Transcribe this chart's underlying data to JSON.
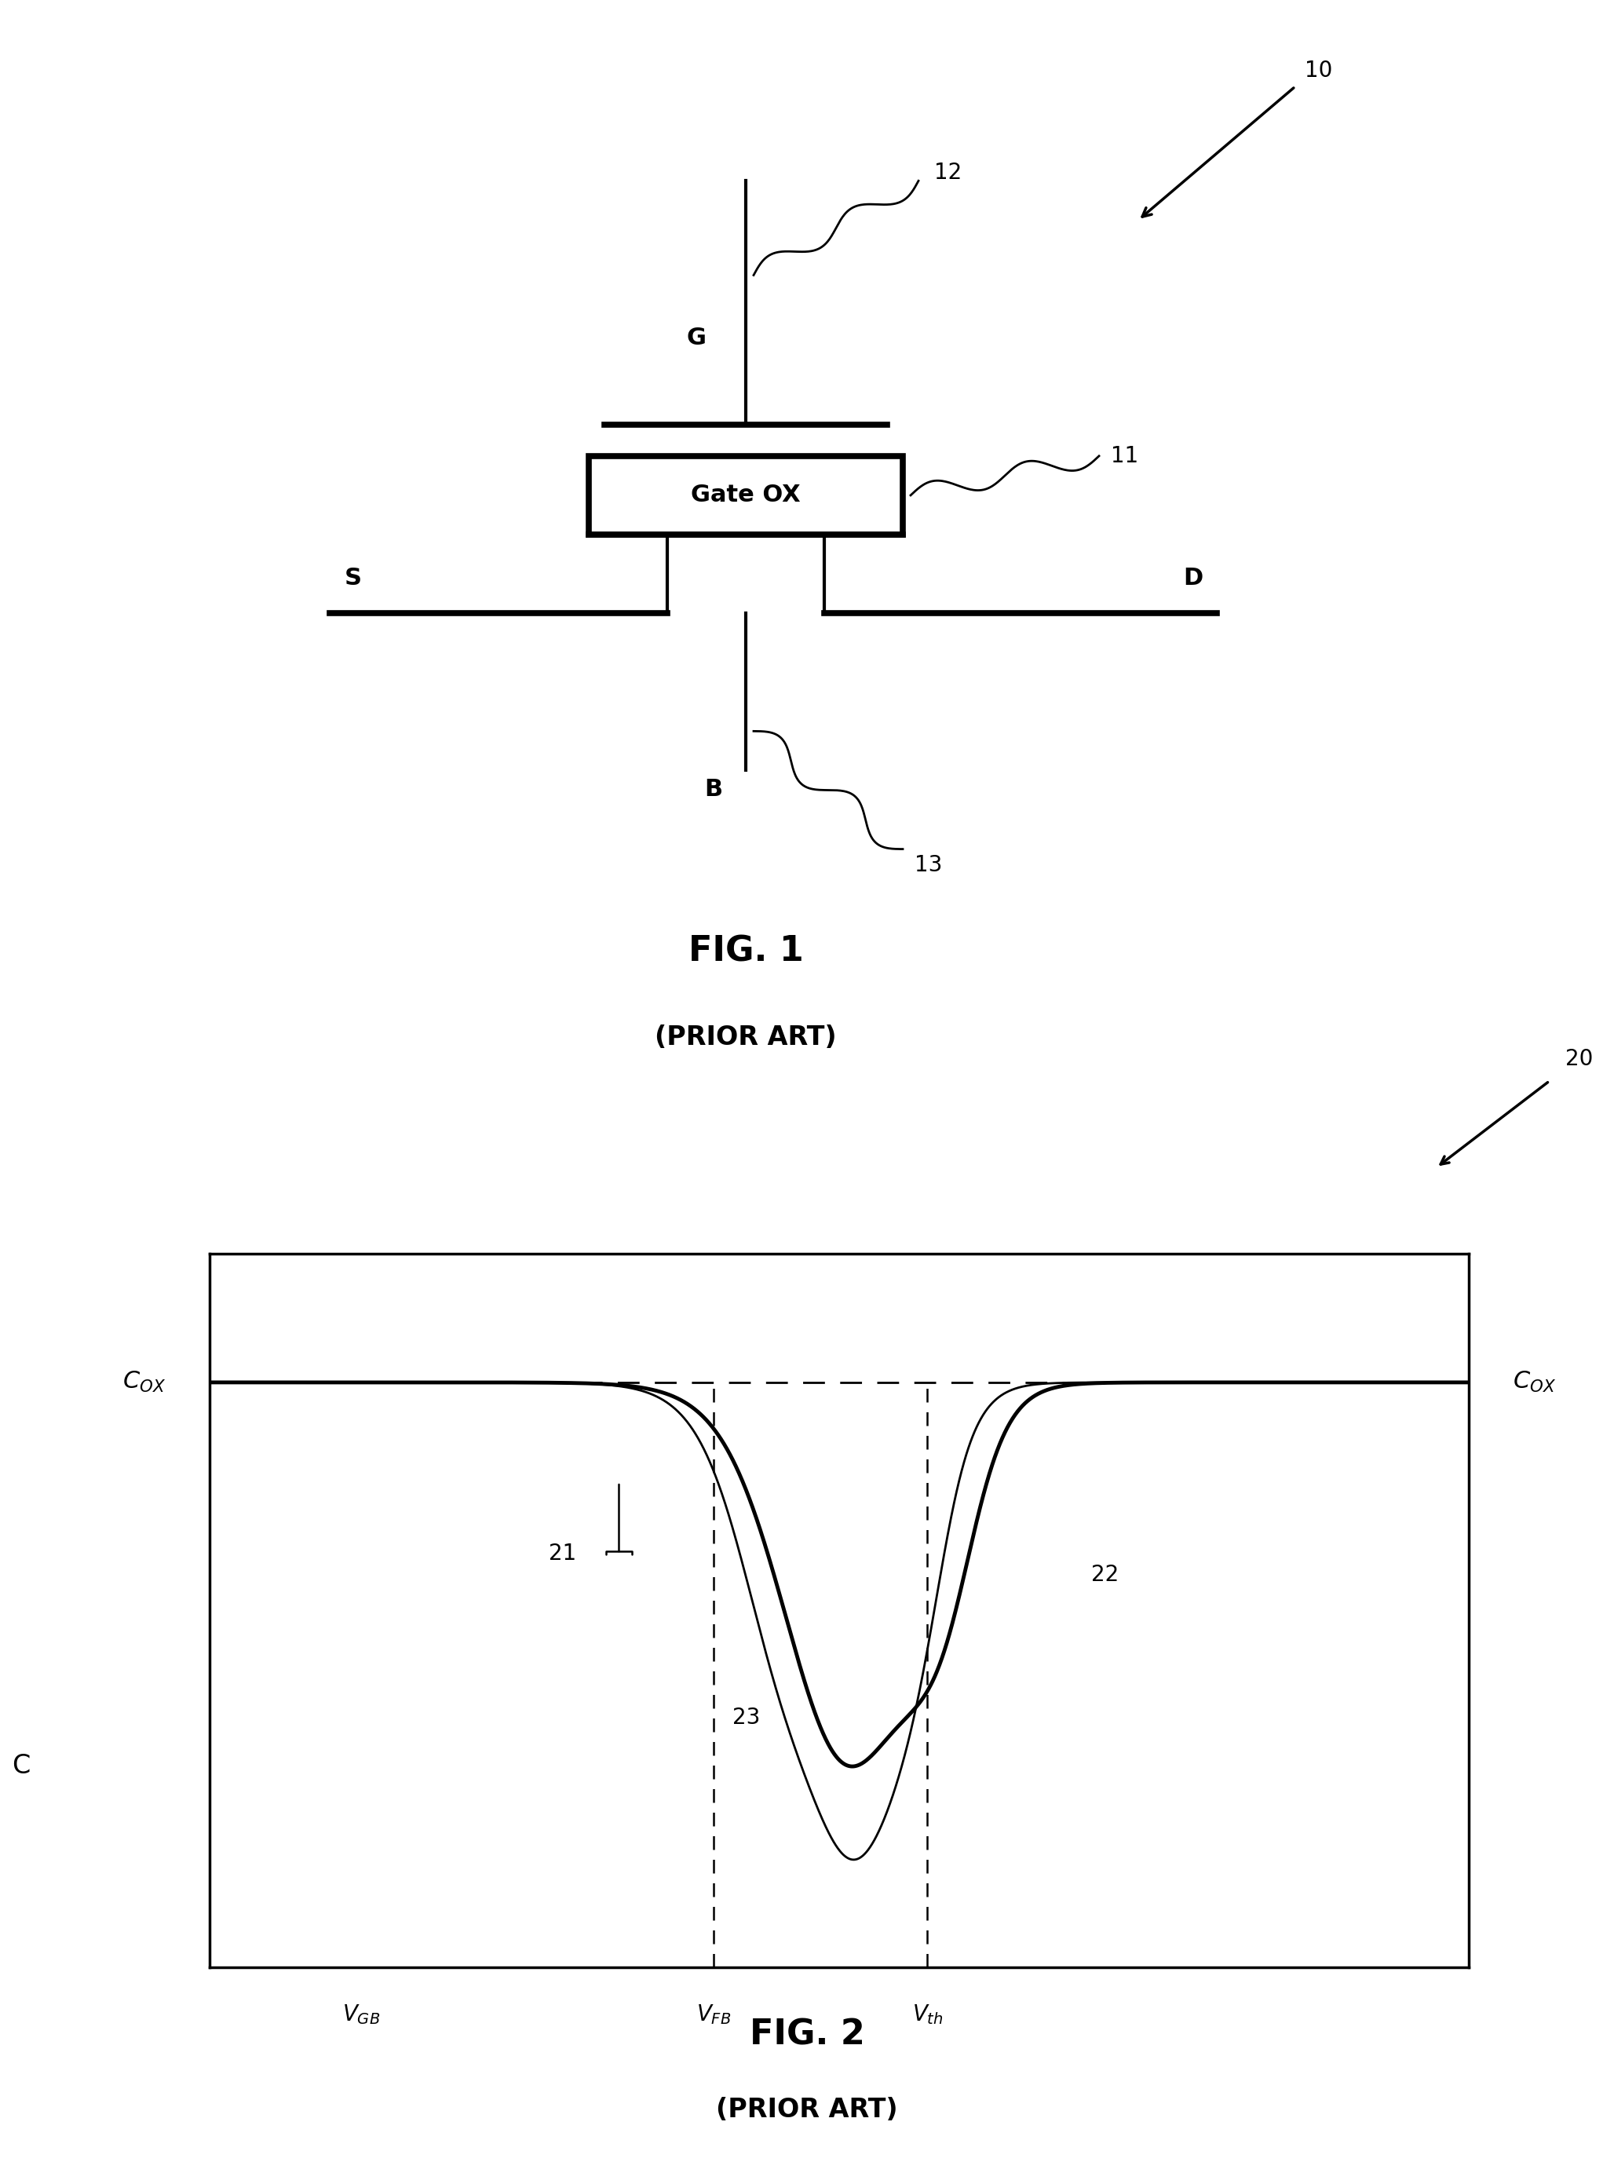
{
  "fig_width": 20.56,
  "fig_height": 27.54,
  "bg_color": "#ffffff",
  "line_color": "#000000",
  "fig1_label": "FIG. 1",
  "fig1_sub": "(PRIOR ART)",
  "fig2_label": "FIG. 2",
  "fig2_sub": "(PRIOR ART)",
  "ref_10": "10",
  "ref_11": "11",
  "ref_12": "12",
  "ref_13": "13",
  "ref_20": "20",
  "ref_21": "21",
  "ref_22": "22",
  "ref_23": "23",
  "label_G": "G",
  "label_S": "S",
  "label_D": "D",
  "label_B": "B",
  "label_GateOX": "Gate OX",
  "label_C": "C",
  "label_Cox_left": "$C_{OX}$",
  "label_Cox_right": "$C_{OX}$",
  "label_VGB": "$V_{GB}$",
  "label_VFB": "$V_{FB}$",
  "label_Vth": "$V_{th}$"
}
